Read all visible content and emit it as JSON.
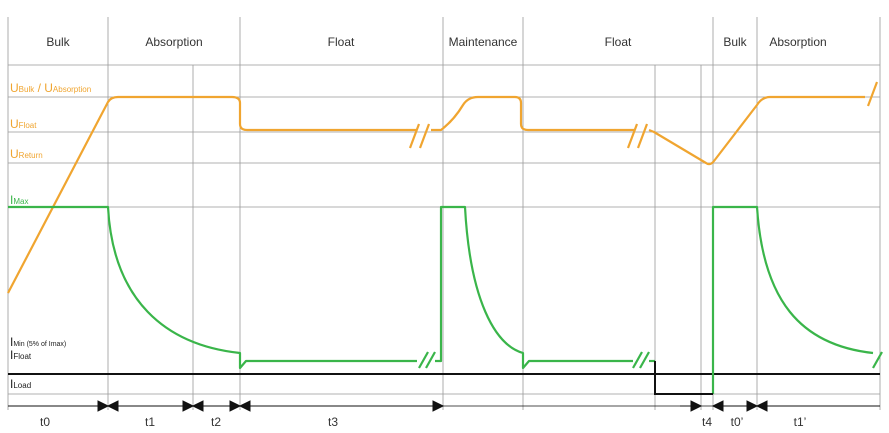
{
  "colors": {
    "voltage": "#f0a530",
    "current": "#3ab54a",
    "grid": "#999999",
    "axis": "#111111",
    "text": "#333333"
  },
  "phases": [
    "Bulk",
    "Absorption",
    "Float",
    "Maintenance",
    "Float",
    "Bulk",
    "Absorption"
  ],
  "levels": {
    "u_bulk_abs": {
      "main": "U",
      "sub1": "Bulk",
      "mid": " / U",
      "sub2": "Absorption"
    },
    "u_float": {
      "main": "U",
      "sub": "Float"
    },
    "u_return": {
      "main": "U",
      "sub": "Return"
    },
    "i_max": {
      "main": "I",
      "sub": "Max"
    },
    "i_min": {
      "main": "I",
      "sub": "Min (5% of Imax)"
    },
    "i_float": {
      "main": "I",
      "sub": "Float"
    },
    "i_load": {
      "main": "I",
      "sub": "Load"
    }
  },
  "time_intervals": [
    "t0",
    "t1",
    "t2",
    "t3",
    "t4",
    "t0’",
    "t1’"
  ]
}
